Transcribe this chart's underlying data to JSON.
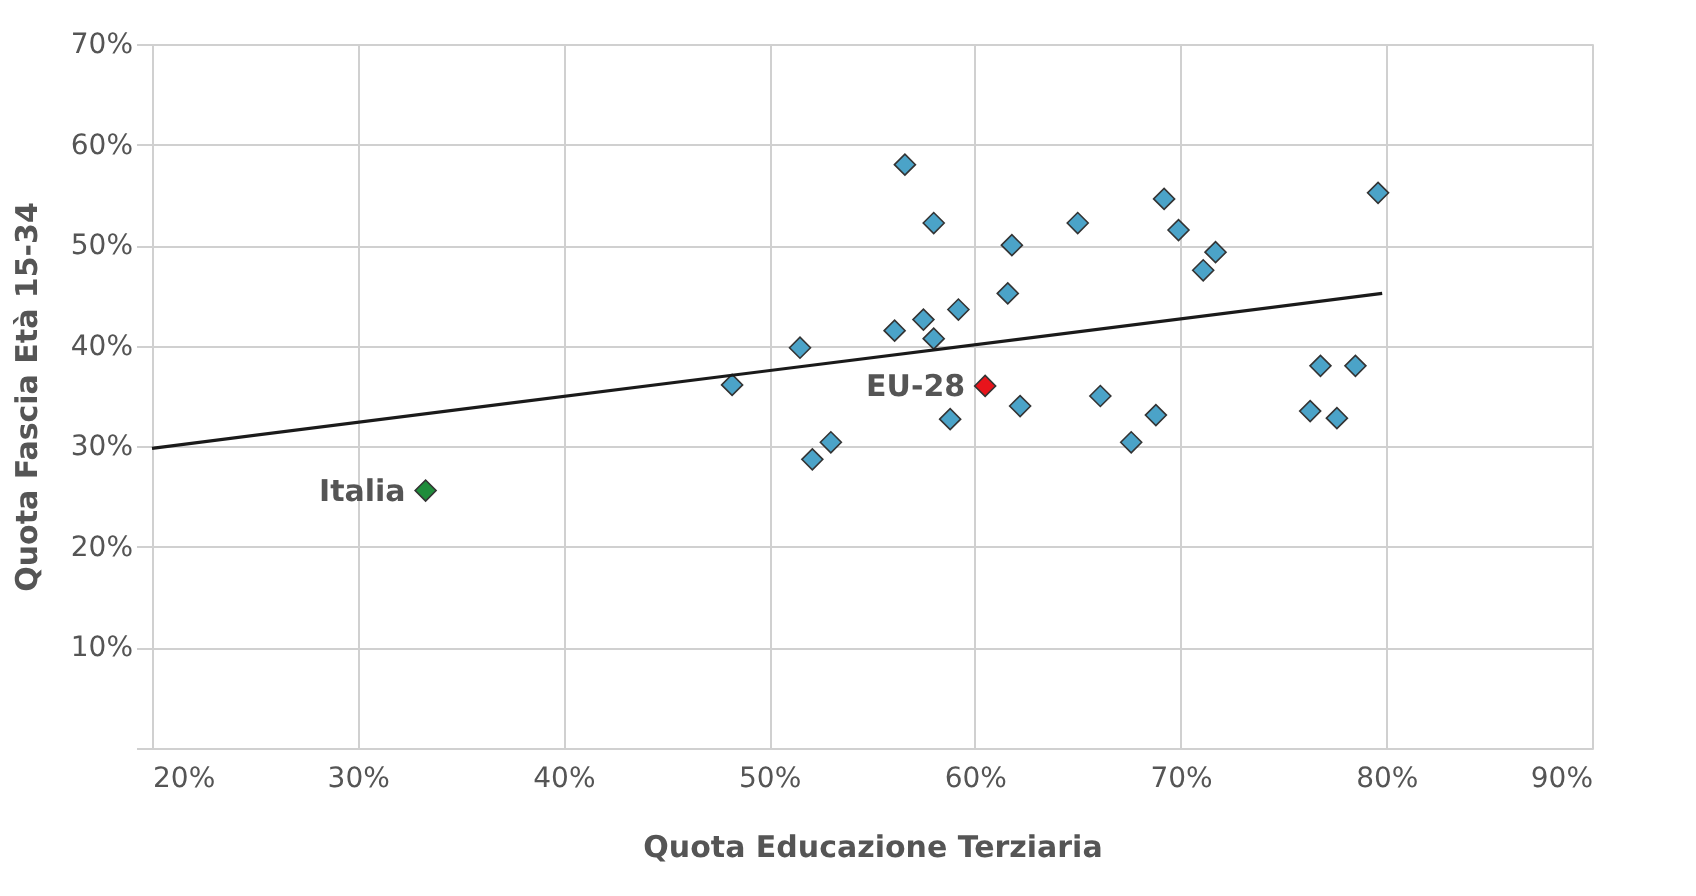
{
  "chart_data": {
    "type": "scatter",
    "xlabel": "Quota Educazione Terziaria",
    "ylabel": "Quota Fascia Età 15-34",
    "xlim": [
      20,
      90
    ],
    "ylim": [
      0,
      70
    ],
    "xticks": [
      {
        "value": 20,
        "label": "20%"
      },
      {
        "value": 30,
        "label": "30%"
      },
      {
        "value": 40,
        "label": "40%"
      },
      {
        "value": 50,
        "label": "50%"
      },
      {
        "value": 60,
        "label": "60%"
      },
      {
        "value": 70,
        "label": "70%"
      },
      {
        "value": 80,
        "label": "80%"
      },
      {
        "value": 90,
        "label": "90%"
      }
    ],
    "yticks": [
      {
        "value": 0,
        "label": null
      },
      {
        "value": 10,
        "label": "10%"
      },
      {
        "value": 20,
        "label": "20%"
      },
      {
        "value": 30,
        "label": "30%"
      },
      {
        "value": 40,
        "label": "40%"
      },
      {
        "value": 50,
        "label": "50%"
      },
      {
        "value": 60,
        "label": "60%"
      },
      {
        "value": 70,
        "label": "70%"
      }
    ],
    "grid": true,
    "marker": "diamond",
    "series": [
      {
        "color": "#4ba3c8",
        "x": [
          56.6,
          58.0,
          51.5,
          56.1,
          57.5,
          58.0,
          59.2,
          61.8,
          61.6,
          65.0,
          69.2,
          69.9,
          71.7,
          71.1,
          62.2,
          58.8,
          53.0,
          52.1,
          66.1,
          67.6,
          68.8,
          79.6,
          76.8,
          78.5,
          76.3,
          77.6,
          48.2
        ],
        "values": [
          58.0,
          52.2,
          39.8,
          41.5,
          42.6,
          40.7,
          43.6,
          50.0,
          45.2,
          52.2,
          54.6,
          51.5,
          49.3,
          47.5,
          34.0,
          32.7,
          30.4,
          28.7,
          35.0,
          30.4,
          33.1,
          55.2,
          38.0,
          38.0,
          33.5,
          32.8,
          36.1
        ]
      },
      {
        "name": "EU-28",
        "color": "#e8141b",
        "x": [
          60.5
        ],
        "values": [
          36.0
        ]
      },
      {
        "name": "Italia",
        "color": "#1f8c3b",
        "x": [
          33.3
        ],
        "values": [
          25.6
        ]
      },
      {
        "type": "line",
        "color": "#1a1a1a",
        "x": [
          20,
          79.8
        ],
        "values": [
          29.8,
          45.2
        ],
        "line_style": "solid",
        "marker": "none"
      }
    ]
  }
}
